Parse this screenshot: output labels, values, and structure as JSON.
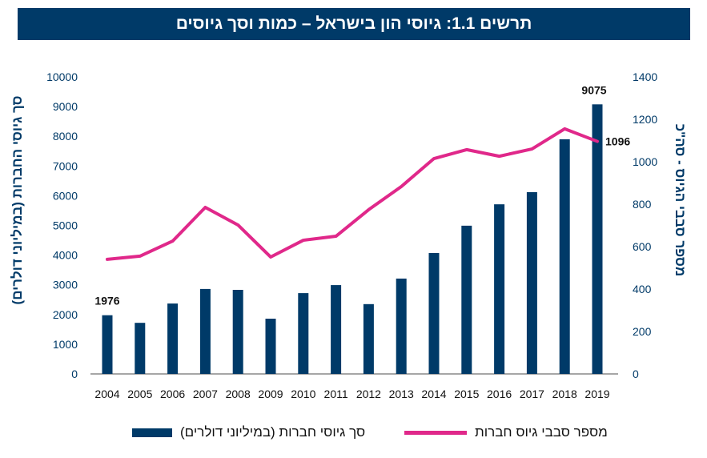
{
  "title": "תרשים 1.1: גיוסי הון בישראל – כמות וסך גיוסים",
  "colors": {
    "bars": "#003a68",
    "line": "#e0288a",
    "title_bg": "#003a68"
  },
  "chart_data": {
    "type": "bar+line",
    "categories": [
      "2004",
      "2005",
      "2006",
      "2007",
      "2008",
      "2009",
      "2010",
      "2011",
      "2012",
      "2013",
      "2014",
      "2015",
      "2016",
      "2017",
      "2018",
      "2019"
    ],
    "series": [
      {
        "name": "סך גיוסי חברות (במיליוני דולרים)",
        "type": "bar",
        "axis": "left",
        "values": [
          1976,
          1720,
          2370,
          2860,
          2830,
          1860,
          2720,
          2990,
          2350,
          3210,
          4070,
          4990,
          5710,
          6120,
          7900,
          9075
        ]
      },
      {
        "name": "מספר סבבי גיוס חברות",
        "type": "line",
        "axis": "right",
        "values": [
          540,
          555,
          626,
          785,
          702,
          551,
          630,
          649,
          774,
          883,
          1015,
          1057,
          1026,
          1060,
          1155,
          1096
        ]
      }
    ],
    "data_labels": [
      {
        "series": 0,
        "index": 0,
        "text": "1976"
      },
      {
        "series": 0,
        "index": 15,
        "text": "9075"
      },
      {
        "series": 1,
        "index": 15,
        "text": "1096"
      }
    ],
    "ylabel_left": "סך גיוסי החברות (במיליוני דולרים)",
    "ylabel_right": "מספר סבבי הגיוס - סה\"כ",
    "ylim_left": [
      0,
      10000
    ],
    "yticks_left": [
      0,
      1000,
      2000,
      3000,
      4000,
      5000,
      6000,
      7000,
      8000,
      9000,
      10000
    ],
    "ylim_right": [
      0,
      1400
    ],
    "yticks_right": [
      0,
      200,
      400,
      600,
      800,
      1000,
      1200,
      1400
    ],
    "grid": false,
    "legend_position": "bottom"
  }
}
